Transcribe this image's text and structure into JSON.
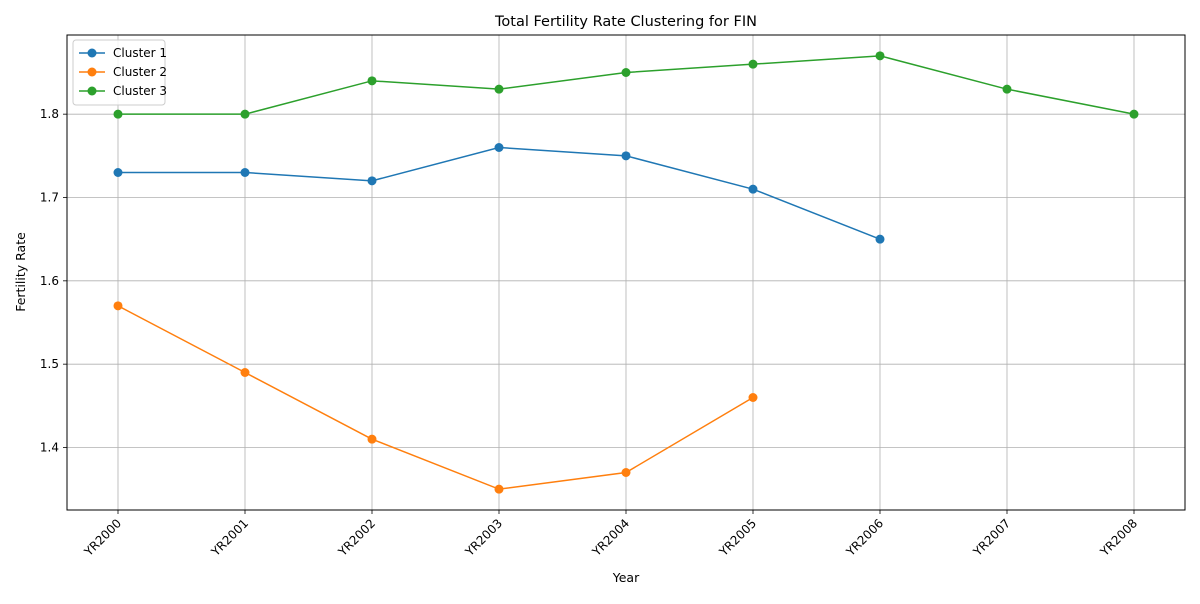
{
  "chart_data": {
    "type": "line",
    "title": "Total Fertility Rate Clustering for FIN",
    "xlabel": "Year",
    "ylabel": "Fertility Rate",
    "categories": [
      "YR2000",
      "YR2001",
      "YR2002",
      "YR2003",
      "YR2004",
      "YR2005",
      "YR2006",
      "YR2007",
      "YR2008"
    ],
    "ylim": [
      1.325,
      1.895
    ],
    "yticks": [
      1.4,
      1.5,
      1.6,
      1.7,
      1.8
    ],
    "grid": true,
    "legend_position": "top-left",
    "series": [
      {
        "name": "Cluster 1",
        "color": "#1f77b4",
        "values": [
          1.73,
          1.73,
          1.72,
          1.76,
          1.75,
          1.71,
          1.65,
          null,
          null
        ]
      },
      {
        "name": "Cluster 2",
        "color": "#ff7f0e",
        "values": [
          1.57,
          1.49,
          1.41,
          1.35,
          1.37,
          1.46,
          null,
          null,
          null
        ]
      },
      {
        "name": "Cluster 3",
        "color": "#2ca02c",
        "values": [
          1.8,
          1.8,
          1.84,
          1.83,
          1.85,
          1.86,
          1.87,
          1.83,
          1.8
        ]
      }
    ]
  }
}
